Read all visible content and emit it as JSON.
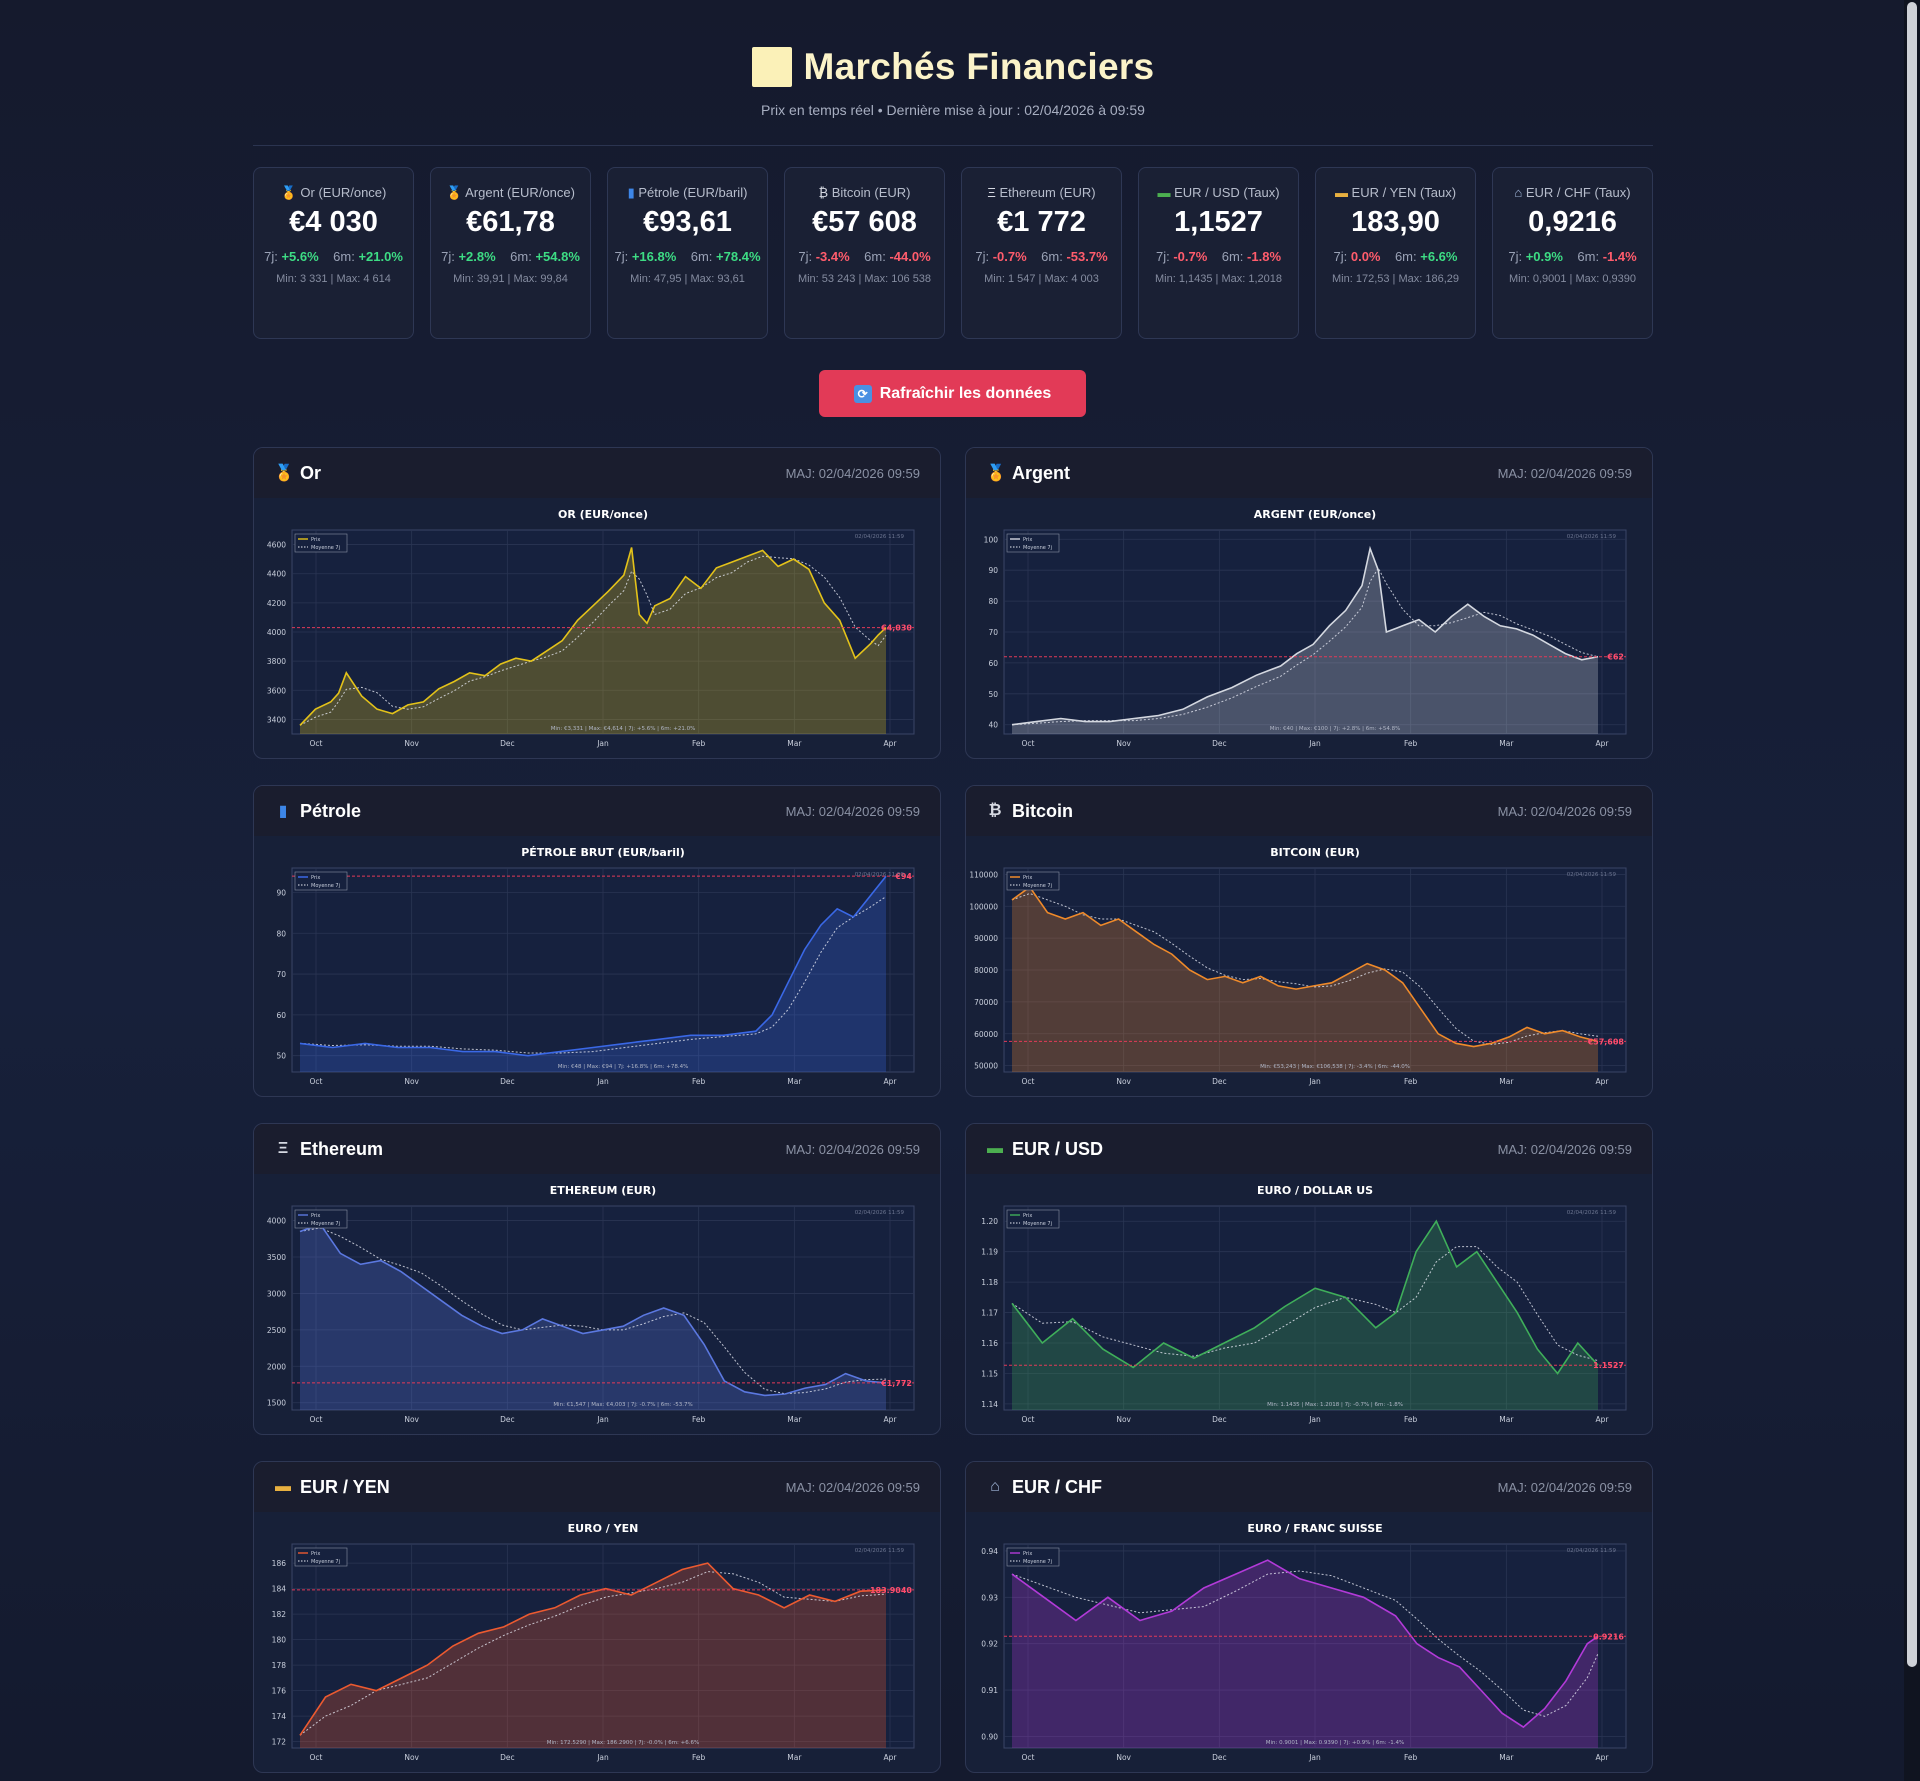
{
  "header": {
    "title": "Marchés Financiers",
    "subtitle": "Prix en temps réel • Dernière mise à jour : 02/04/2026 à 09:59"
  },
  "summary_cards": [
    {
      "id": "or",
      "icon": "gold-medal-icon",
      "label": "Or (EUR/once)",
      "value": "€4 030",
      "change_7d": "+5.6%",
      "change_6m": "+21.0%",
      "minmax": "Min: 3 331 | Max: 4 614"
    },
    {
      "id": "argent",
      "icon": "silver-medal-icon",
      "label": "Argent (EUR/once)",
      "value": "€61,78",
      "change_7d": "+2.8%",
      "change_6m": "+54.8%",
      "minmax": "Min: 39,91 | Max: 99,84"
    },
    {
      "id": "petrole",
      "icon": "oil-barrel-icon",
      "label": "Pétrole (EUR/baril)",
      "value": "€93,61",
      "change_7d": "+16.8%",
      "change_6m": "+78.4%",
      "minmax": "Min: 47,95 | Max: 93,61"
    },
    {
      "id": "bitcoin",
      "icon": "bitcoin-icon",
      "label": "Bitcoin (EUR)",
      "value": "€57 608",
      "change_7d": "-3.4%",
      "change_6m": "-44.0%",
      "minmax": "Min: 53 243 | Max: 106 538"
    },
    {
      "id": "ethereum",
      "icon": "ethereum-icon",
      "label": "Ethereum (EUR)",
      "value": "€1 772",
      "change_7d": "-0.7%",
      "change_6m": "-53.7%",
      "minmax": "Min: 1 547 | Max: 4 003"
    },
    {
      "id": "eurusd",
      "icon": "dollar-banknote-icon",
      "label": "EUR / USD (Taux)",
      "value": "1,1527",
      "change_7d": "-0.7%",
      "change_6m": "-1.8%",
      "minmax": "Min: 1,1435 | Max: 1,2018"
    },
    {
      "id": "euryen",
      "icon": "yen-banknote-icon",
      "label": "EUR / YEN (Taux)",
      "value": "183,90",
      "change_7d": "0.0%",
      "change_6m": "+6.6%",
      "minmax": "Min: 172,53 | Max: 186,29"
    },
    {
      "id": "eurchf",
      "icon": "bank-icon",
      "label": "EUR / CHF (Taux)",
      "value": "0,9216",
      "change_7d": "+0.9%",
      "change_6m": "-1.4%",
      "minmax": "Min: 0,9001 | Max: 0,9390"
    }
  ],
  "labels": {
    "d7": "7j:",
    "m6": "6m:"
  },
  "refresh_label": "Rafraîchir les données",
  "panel_time": "MAJ: 02/04/2026 09:59",
  "chart_data": [
    {
      "name": "Or",
      "icon": "gold-medal-icon",
      "type": "line",
      "title": "OR (EUR/once)",
      "color": "#e3c21a",
      "ylim": [
        3300,
        4700
      ],
      "yticks": [
        3400,
        3600,
        3800,
        4000,
        4200,
        4400,
        4600
      ],
      "xticks": [
        "Oct",
        "Nov",
        "Dec",
        "Jan",
        "Feb",
        "Mar",
        "Apr"
      ],
      "current": 4030,
      "current_label": "€4,030",
      "legend": [
        "Prix",
        "Moyenne 7j"
      ],
      "stamp": "02/04/2026 11:59",
      "footer": "Min: €3,331 | Max: €4,614 | 7j: +5.6% | 6m: +21.0%",
      "points": [
        [
          0,
          3360
        ],
        [
          2,
          3470
        ],
        [
          4,
          3520
        ],
        [
          5,
          3580
        ],
        [
          6,
          3720
        ],
        [
          8,
          3560
        ],
        [
          10,
          3470
        ],
        [
          12,
          3440
        ],
        [
          14,
          3500
        ],
        [
          16,
          3520
        ],
        [
          18,
          3610
        ],
        [
          20,
          3660
        ],
        [
          22,
          3720
        ],
        [
          24,
          3700
        ],
        [
          26,
          3780
        ],
        [
          28,
          3820
        ],
        [
          30,
          3800
        ],
        [
          32,
          3870
        ],
        [
          34,
          3940
        ],
        [
          36,
          4080
        ],
        [
          38,
          4180
        ],
        [
          40,
          4280
        ],
        [
          42,
          4390
        ],
        [
          43,
          4580
        ],
        [
          44,
          4120
        ],
        [
          45,
          4060
        ],
        [
          46,
          4180
        ],
        [
          48,
          4230
        ],
        [
          50,
          4380
        ],
        [
          52,
          4300
        ],
        [
          54,
          4440
        ],
        [
          56,
          4480
        ],
        [
          58,
          4520
        ],
        [
          60,
          4560
        ],
        [
          62,
          4450
        ],
        [
          64,
          4500
        ],
        [
          66,
          4430
        ],
        [
          68,
          4200
        ],
        [
          70,
          4080
        ],
        [
          72,
          3820
        ],
        [
          74,
          3920
        ],
        [
          75,
          3980
        ],
        [
          76,
          4030
        ]
      ]
    },
    {
      "name": "Argent",
      "icon": "silver-medal-icon",
      "type": "line",
      "title": "ARGENT (EUR/once)",
      "color": "#d4d8e0",
      "ylim": [
        37,
        103
      ],
      "yticks": [
        40,
        50,
        60,
        70,
        80,
        90,
        100
      ],
      "xticks": [
        "Oct",
        "Nov",
        "Dec",
        "Jan",
        "Feb",
        "Mar",
        "Apr"
      ],
      "current": 62,
      "current_label": "€62",
      "legend": [
        "Prix",
        "Moyenne 7j"
      ],
      "stamp": "02/04/2026 11:59",
      "footer": "Min: €40 | Max: €100 | 7j: +2.8% | 6m: +54.8%",
      "points": [
        [
          0,
          40
        ],
        [
          3,
          41
        ],
        [
          6,
          42
        ],
        [
          9,
          41
        ],
        [
          12,
          41
        ],
        [
          15,
          42
        ],
        [
          18,
          43
        ],
        [
          21,
          45
        ],
        [
          24,
          49
        ],
        [
          27,
          52
        ],
        [
          30,
          56
        ],
        [
          33,
          59
        ],
        [
          35,
          63
        ],
        [
          37,
          66
        ],
        [
          39,
          72
        ],
        [
          41,
          77
        ],
        [
          43,
          85
        ],
        [
          44,
          97
        ],
        [
          45,
          90
        ],
        [
          46,
          70
        ],
        [
          48,
          72
        ],
        [
          50,
          74
        ],
        [
          52,
          70
        ],
        [
          54,
          75
        ],
        [
          56,
          79
        ],
        [
          58,
          75
        ],
        [
          60,
          72
        ],
        [
          62,
          71
        ],
        [
          64,
          69
        ],
        [
          66,
          66
        ],
        [
          68,
          63
        ],
        [
          70,
          61
        ],
        [
          72,
          62
        ]
      ]
    },
    {
      "name": "Pétrole",
      "icon": "oil-barrel-icon",
      "type": "line",
      "title": "PÉTROLE BRUT (EUR/baril)",
      "color": "#3a68e6",
      "ylim": [
        46,
        96
      ],
      "yticks": [
        50,
        60,
        70,
        80,
        90
      ],
      "xticks": [
        "Oct",
        "Nov",
        "Dec",
        "Jan",
        "Feb",
        "Mar",
        "Apr"
      ],
      "current": 94,
      "current_label": "€94",
      "legend": [
        "Prix",
        "Moyenne 7j"
      ],
      "stamp": "02/04/2026 11:59",
      "footer": "Min: €48 | Max: €94 | 7j: +16.8% | 6m: +78.4%",
      "points": [
        [
          0,
          53
        ],
        [
          4,
          52
        ],
        [
          8,
          53
        ],
        [
          12,
          52
        ],
        [
          16,
          52
        ],
        [
          20,
          51
        ],
        [
          24,
          51
        ],
        [
          28,
          50
        ],
        [
          32,
          51
        ],
        [
          36,
          52
        ],
        [
          40,
          53
        ],
        [
          44,
          54
        ],
        [
          48,
          55
        ],
        [
          52,
          55
        ],
        [
          56,
          56
        ],
        [
          58,
          60
        ],
        [
          60,
          68
        ],
        [
          62,
          76
        ],
        [
          64,
          82
        ],
        [
          66,
          86
        ],
        [
          68,
          84
        ],
        [
          70,
          89
        ],
        [
          72,
          94
        ]
      ]
    },
    {
      "name": "Bitcoin",
      "icon": "bitcoin-icon",
      "type": "line",
      "title": "BITCOIN (EUR)",
      "color": "#ef8a2a",
      "ylim": [
        48000,
        112000
      ],
      "yticks": [
        50000,
        60000,
        70000,
        80000,
        90000,
        100000,
        110000
      ],
      "xticks": [
        "Oct",
        "Nov",
        "Dec",
        "Jan",
        "Feb",
        "Mar",
        "Apr"
      ],
      "current": 57608,
      "current_label": "€57,608",
      "legend": [
        "Prix",
        "Moyenne 7j"
      ],
      "stamp": "02/04/2026 11:59",
      "footer": "Min: €53,243 | Max: €106,538 | 7j: -3.4% | 6m: -44.0%",
      "points": [
        [
          0,
          102000
        ],
        [
          2,
          106000
        ],
        [
          4,
          98000
        ],
        [
          6,
          96000
        ],
        [
          8,
          98000
        ],
        [
          10,
          94000
        ],
        [
          12,
          96000
        ],
        [
          14,
          92000
        ],
        [
          16,
          88000
        ],
        [
          18,
          85000
        ],
        [
          20,
          80000
        ],
        [
          22,
          77000
        ],
        [
          24,
          78000
        ],
        [
          26,
          76000
        ],
        [
          28,
          78000
        ],
        [
          30,
          75000
        ],
        [
          32,
          74000
        ],
        [
          34,
          75000
        ],
        [
          36,
          76000
        ],
        [
          38,
          79000
        ],
        [
          40,
          82000
        ],
        [
          42,
          80000
        ],
        [
          44,
          76000
        ],
        [
          46,
          68000
        ],
        [
          48,
          60000
        ],
        [
          50,
          57000
        ],
        [
          52,
          56000
        ],
        [
          54,
          57000
        ],
        [
          56,
          59000
        ],
        [
          58,
          62000
        ],
        [
          60,
          60000
        ],
        [
          62,
          61000
        ],
        [
          64,
          59000
        ],
        [
          66,
          57608
        ]
      ]
    },
    {
      "name": "Ethereum",
      "icon": "ethereum-icon",
      "type": "line",
      "title": "ETHEREUM (EUR)",
      "color": "#5b78e0",
      "ylim": [
        1400,
        4200
      ],
      "yticks": [
        1500,
        2000,
        2500,
        3000,
        3500,
        4000
      ],
      "xticks": [
        "Oct",
        "Nov",
        "Dec",
        "Jan",
        "Feb",
        "Mar",
        "Apr"
      ],
      "current": 1772,
      "current_label": "€1,772",
      "legend": [
        "Prix",
        "Moyenne 7j"
      ],
      "stamp": "02/04/2026 11:59",
      "footer": "Min: €1,547 | Max: €4,003 | 7j: -0.7% | 6m: -53.7%",
      "points": [
        [
          0,
          3850
        ],
        [
          2,
          3950
        ],
        [
          4,
          3550
        ],
        [
          6,
          3400
        ],
        [
          8,
          3450
        ],
        [
          10,
          3300
        ],
        [
          12,
          3100
        ],
        [
          14,
          2900
        ],
        [
          16,
          2700
        ],
        [
          18,
          2550
        ],
        [
          20,
          2450
        ],
        [
          22,
          2500
        ],
        [
          24,
          2650
        ],
        [
          26,
          2550
        ],
        [
          28,
          2450
        ],
        [
          30,
          2500
        ],
        [
          32,
          2550
        ],
        [
          34,
          2700
        ],
        [
          36,
          2800
        ],
        [
          38,
          2700
        ],
        [
          40,
          2300
        ],
        [
          42,
          1800
        ],
        [
          44,
          1650
        ],
        [
          46,
          1600
        ],
        [
          48,
          1620
        ],
        [
          50,
          1700
        ],
        [
          52,
          1750
        ],
        [
          54,
          1900
        ],
        [
          56,
          1800
        ],
        [
          58,
          1772
        ]
      ]
    },
    {
      "name": "EUR / USD",
      "icon": "dollar-banknote-icon",
      "type": "line",
      "title": "EURO / DOLLAR US",
      "color": "#3fae5a",
      "ylim": [
        1.138,
        1.205
      ],
      "yticks": [
        1.14,
        1.15,
        1.16,
        1.17,
        1.18,
        1.19,
        1.2
      ],
      "xticks": [
        "Oct",
        "Nov",
        "Dec",
        "Jan",
        "Feb",
        "Mar",
        "Apr"
      ],
      "current": 1.1527,
      "current_label": "1.1527",
      "legend": [
        "Prix",
        "Moyenne 7j"
      ],
      "stamp": "02/04/2026 11:59",
      "footer": "Min: 1.1435 | Max: 1.2018 | 7j: -0.7% | 6m: -1.8%",
      "points": [
        [
          0,
          1.173
        ],
        [
          3,
          1.16
        ],
        [
          6,
          1.168
        ],
        [
          9,
          1.158
        ],
        [
          12,
          1.152
        ],
        [
          15,
          1.16
        ],
        [
          18,
          1.155
        ],
        [
          21,
          1.16
        ],
        [
          24,
          1.165
        ],
        [
          27,
          1.172
        ],
        [
          30,
          1.178
        ],
        [
          33,
          1.175
        ],
        [
          36,
          1.165
        ],
        [
          38,
          1.17
        ],
        [
          40,
          1.19
        ],
        [
          42,
          1.2
        ],
        [
          44,
          1.185
        ],
        [
          46,
          1.19
        ],
        [
          48,
          1.18
        ],
        [
          50,
          1.17
        ],
        [
          52,
          1.158
        ],
        [
          54,
          1.15
        ],
        [
          56,
          1.16
        ],
        [
          58,
          1.1527
        ]
      ]
    },
    {
      "name": "EUR / YEN",
      "icon": "yen-banknote-icon",
      "type": "line",
      "title": "EURO / YEN",
      "color": "#ec5a30",
      "ylim": [
        171.5,
        187.5
      ],
      "yticks": [
        172,
        174,
        176,
        178,
        180,
        182,
        184,
        186
      ],
      "xticks": [
        "Oct",
        "Nov",
        "Dec",
        "Jan",
        "Feb",
        "Mar",
        "Apr"
      ],
      "current": 183.904,
      "current_label": "183.9040",
      "legend": [
        "Prix",
        "Moyenne 7j"
      ],
      "stamp": "02/04/2026 11:59",
      "footer": "Min: 172.5290 | Max: 186.2900 | 7j: -0.0% | 6m: +6.6%",
      "points": [
        [
          0,
          172.5
        ],
        [
          2,
          175.5
        ],
        [
          4,
          176.5
        ],
        [
          6,
          176
        ],
        [
          8,
          177
        ],
        [
          10,
          178
        ],
        [
          12,
          179.5
        ],
        [
          14,
          180.5
        ],
        [
          16,
          181
        ],
        [
          18,
          182
        ],
        [
          20,
          182.5
        ],
        [
          22,
          183.5
        ],
        [
          24,
          184
        ],
        [
          26,
          183.5
        ],
        [
          28,
          184.5
        ],
        [
          30,
          185.5
        ],
        [
          32,
          186
        ],
        [
          34,
          184
        ],
        [
          36,
          183.5
        ],
        [
          38,
          182.5
        ],
        [
          40,
          183.5
        ],
        [
          42,
          183
        ],
        [
          44,
          183.8
        ],
        [
          46,
          183.9
        ]
      ]
    },
    {
      "name": "EUR / CHF",
      "icon": "bank-icon",
      "type": "line",
      "title": "EURO / FRANC SUISSE",
      "color": "#b23ad8",
      "ylim": [
        0.8975,
        0.9415
      ],
      "yticks": [
        0.9,
        0.91,
        0.92,
        0.93,
        0.94
      ],
      "xticks": [
        "Oct",
        "Nov",
        "Dec",
        "Jan",
        "Feb",
        "Mar",
        "Apr"
      ],
      "current": 0.9216,
      "current_label": "0.9216",
      "legend": [
        "Prix",
        "Moyenne 7j"
      ],
      "stamp": "02/04/2026 11:59",
      "footer": "Min: 0.9001 | Max: 0.9390 | 7j: +0.9% | 6m: -1.4%",
      "points": [
        [
          0,
          0.935
        ],
        [
          3,
          0.93
        ],
        [
          6,
          0.925
        ],
        [
          9,
          0.93
        ],
        [
          12,
          0.925
        ],
        [
          15,
          0.927
        ],
        [
          18,
          0.932
        ],
        [
          21,
          0.935
        ],
        [
          24,
          0.938
        ],
        [
          27,
          0.934
        ],
        [
          30,
          0.932
        ],
        [
          33,
          0.93
        ],
        [
          36,
          0.926
        ],
        [
          38,
          0.92
        ],
        [
          40,
          0.917
        ],
        [
          42,
          0.915
        ],
        [
          44,
          0.91
        ],
        [
          46,
          0.905
        ],
        [
          48,
          0.902
        ],
        [
          50,
          0.906
        ],
        [
          52,
          0.912
        ],
        [
          54,
          0.92
        ],
        [
          55,
          0.9216
        ]
      ]
    }
  ]
}
